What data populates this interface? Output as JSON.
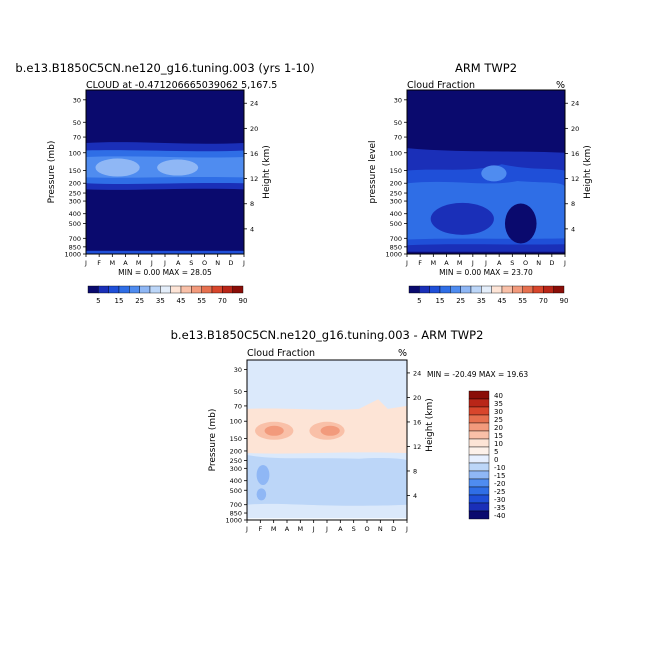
{
  "chart_data": [
    {
      "type": "heatmap",
      "title": "b.e13.B1850C5CN.ne120_g16.tuning.003 (yrs 1-10)",
      "subtitle_left": "CLOUD at -0.471206665039062 5,167.5",
      "subtitle_right": "",
      "ylabel": "Pressure (mb)",
      "ylabel_right": "Height (km)",
      "stats": "MIN =    0.00 MAX =   28.05",
      "x_ticks": [
        "J",
        "F",
        "M",
        "A",
        "M",
        "J",
        "J",
        "A",
        "S",
        "O",
        "N",
        "D",
        "J"
      ],
      "y_ticks": [
        "30",
        "50",
        "70",
        "100",
        "150",
        "200",
        "250",
        "300",
        "400",
        "500",
        "700",
        "850",
        "1000"
      ],
      "y_ticks_right": [
        "24",
        "20",
        "16",
        "12",
        "8",
        "4"
      ],
      "y_range_mb": [
        1000,
        20
      ],
      "grid": false,
      "legend": "bottom",
      "min": 0.0,
      "max": 28.05,
      "cloud_layers": [
        {
          "level": "100-200 mb",
          "peak_value": 28.05,
          "pattern": "maximum near 150 mb, strongest Feb-Mar and Jun-Aug"
        },
        {
          "level": "near 1000 mb",
          "peak_value": 5,
          "pattern": "thin surface layer"
        }
      ]
    },
    {
      "type": "heatmap",
      "title": "ARM TWP2",
      "subtitle_left": "Cloud Fraction",
      "subtitle_right": "%",
      "ylabel": "pressure level",
      "ylabel_right": "Height (km)",
      "stats": "MIN =    0.00 MAX =   23.70",
      "x_ticks": [
        "J",
        "F",
        "M",
        "A",
        "M",
        "J",
        "J",
        "A",
        "S",
        "O",
        "N",
        "D",
        "J"
      ],
      "y_ticks": [
        "30",
        "50",
        "70",
        "100",
        "150",
        "200",
        "250",
        "300",
        "400",
        "500",
        "700",
        "850",
        "1000"
      ],
      "y_ticks_right": [
        "24",
        "20",
        "16",
        "12",
        "8",
        "4"
      ],
      "grid": false,
      "legend": "bottom",
      "min": 0.0,
      "max": 23.7,
      "cloud_layers": [
        {
          "level": "100-700 mb",
          "peak_value": 23.7,
          "pattern": "deep layer, max near 500-700 mb in Sep-Nov"
        }
      ]
    },
    {
      "type": "heatmap",
      "title": "b.e13.B1850C5CN.ne120_g16.tuning.003 - ARM TWP2",
      "subtitle_left": "Cloud Fraction",
      "subtitle_right": "%",
      "ylabel": "Pressure (mb)",
      "ylabel_right": "Height (km)",
      "stats": "MIN = -20.49 MAX =  19.63",
      "x_ticks": [
        "J",
        "F",
        "M",
        "A",
        "M",
        "J",
        "J",
        "A",
        "S",
        "O",
        "N",
        "D",
        "J"
      ],
      "y_ticks": [
        "30",
        "50",
        "70",
        "100",
        "150",
        "200",
        "250",
        "300",
        "400",
        "500",
        "700",
        "850",
        "1000"
      ],
      "y_ticks_right": [
        "24",
        "20",
        "16",
        "12",
        "8",
        "4"
      ],
      "grid": false,
      "legend": "right",
      "min": -20.49,
      "max": 19.63,
      "cloud_layers": [
        {
          "level": "70-200 mb",
          "peak_value": 19.63,
          "pattern": "positive, max near 120 mb in Mar and Jul"
        },
        {
          "level": "200-900 mb",
          "peak_value": -20.49,
          "pattern": "negative, strongest near 250-500 mb"
        }
      ]
    }
  ],
  "colorbar_top": {
    "labels": [
      "5",
      "15",
      "25",
      "35",
      "45",
      "55",
      "70",
      "90"
    ],
    "colors": [
      "#0a0a6e",
      "#1a2fb8",
      "#1f4fd8",
      "#2f6ee6",
      "#4f8cf0",
      "#8fb7f5",
      "#bcd6f8",
      "#e4eefa",
      "#fde4d6",
      "#f9c0a8",
      "#f29a7c",
      "#e6704f",
      "#d8462c",
      "#b92618",
      "#8a0e08"
    ]
  },
  "colorbar_diff": {
    "labels": [
      "40",
      "35",
      "30",
      "25",
      "20",
      "15",
      "10",
      "5",
      "0",
      "-10",
      "-15",
      "-20",
      "-25",
      "-30",
      "-35",
      "-40"
    ],
    "colors": [
      "#8a0e08",
      "#b92618",
      "#d8462c",
      "#e6704f",
      "#f29a7c",
      "#f9c0a8",
      "#fde4d6",
      "#fdf1ea",
      "#e6efff",
      "#bcd6f8",
      "#8fb7f5",
      "#4f8cf0",
      "#2f6ee6",
      "#1f4fd8",
      "#1a2fb8",
      "#0a0a6e"
    ]
  }
}
